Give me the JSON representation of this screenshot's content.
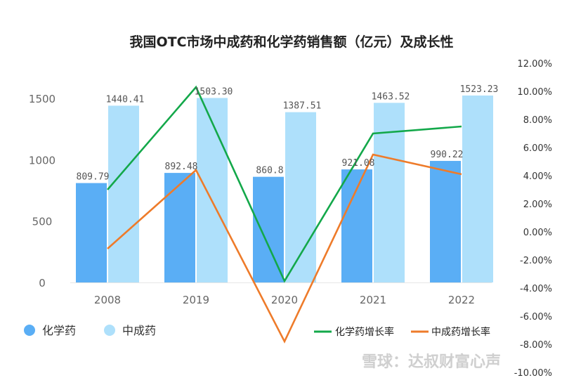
{
  "chart_data": {
    "type": "bar",
    "title": "我国OTC市场中成药和化学药销售额（亿元）及成长性",
    "categories": [
      "2008",
      "2019",
      "2020",
      "2021",
      "2022"
    ],
    "y_left": {
      "min": 0,
      "max": 1500,
      "ticks": [
        "0",
        "500",
        "1000",
        "1500"
      ]
    },
    "y_right": {
      "min": -10,
      "max": 12,
      "ticks": [
        "-10.00%",
        "-8.00%",
        "-6.00%",
        "-4.00%",
        "-2.00%",
        "0.00%",
        "2.00%",
        "4.00%",
        "6.00%",
        "8.00%",
        "10.00%",
        "12.00%"
      ]
    },
    "series": [
      {
        "name": "化学药",
        "kind": "bar",
        "color": "#5aaef5",
        "values": [
          809.79,
          892.48,
          860.8,
          921.08,
          990.22
        ],
        "labels": [
          "809.79",
          "892.48",
          "860.8",
          "921.08",
          "990.22"
        ]
      },
      {
        "name": "中成药",
        "kind": "bar",
        "color": "#aee0fb",
        "values": [
          1440.41,
          1503.3,
          1387.51,
          1463.52,
          1523.23
        ],
        "labels": [
          "1440.41",
          "1503.30",
          "1387.51",
          "1463.52",
          "1523.23"
        ]
      },
      {
        "name": "化学药增长率",
        "kind": "line",
        "color": "#13a84a",
        "axis": "right",
        "values": [
          3.0,
          10.3,
          -3.5,
          7.0,
          7.5
        ]
      },
      {
        "name": "中成药增长率",
        "kind": "line",
        "color": "#ee7b2a",
        "axis": "right",
        "values": [
          -1.2,
          4.4,
          -7.8,
          5.5,
          4.1
        ]
      }
    ],
    "legend": {
      "bars": [
        "化学药",
        "中成药"
      ],
      "lines": [
        "化学药增长率",
        "中成药增长率"
      ]
    },
    "grid": false
  },
  "watermark": "雪球：达叔财富心声"
}
